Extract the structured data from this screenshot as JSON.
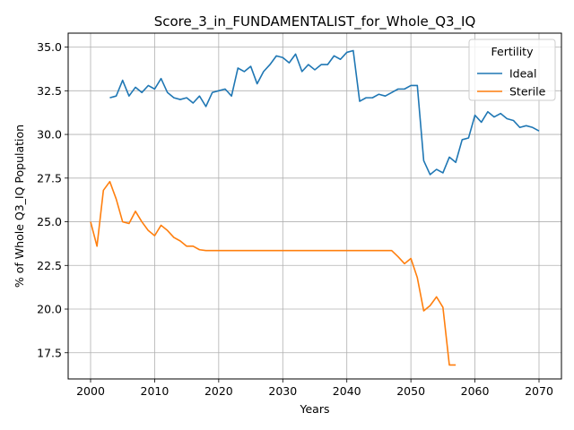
{
  "chart_data": {
    "type": "line",
    "title": "Score_3_in_FUNDAMENTALIST_for_Whole_Q3_IQ",
    "xlabel": "Years",
    "ylabel": "% of Whole Q3_IQ Population",
    "xlim": [
      1996.5,
      2073.5
    ],
    "ylim": [
      16.0,
      35.8
    ],
    "xticks": [
      2000,
      2010,
      2020,
      2030,
      2040,
      2050,
      2060,
      2070
    ],
    "yticks": [
      17.5,
      20.0,
      22.5,
      25.0,
      27.5,
      30.0,
      32.5,
      35.0
    ],
    "ytick_labels": [
      "17.5",
      "20.0",
      "22.5",
      "25.0",
      "27.5",
      "30.0",
      "32.5",
      "35.0"
    ],
    "grid": true,
    "legend": {
      "title": "Fertility",
      "placement": "top-right"
    },
    "series": [
      {
        "name": "Ideal",
        "color": "#1f77b4",
        "x": [
          2003,
          2004,
          2005,
          2006,
          2007,
          2008,
          2009,
          2010,
          2011,
          2012,
          2013,
          2014,
          2015,
          2016,
          2017,
          2018,
          2019,
          2020,
          2021,
          2022,
          2023,
          2024,
          2025,
          2026,
          2027,
          2028,
          2029,
          2030,
          2031,
          2032,
          2033,
          2034,
          2035,
          2036,
          2037,
          2038,
          2039,
          2040,
          2041,
          2042,
          2043,
          2044,
          2045,
          2046,
          2047,
          2048,
          2049,
          2050,
          2051,
          2052,
          2053,
          2054,
          2055,
          2056,
          2057,
          2058,
          2059,
          2060,
          2061,
          2062,
          2063,
          2064,
          2065,
          2066,
          2067,
          2068,
          2069,
          2070
        ],
        "y": [
          32.1,
          32.2,
          33.1,
          32.2,
          32.7,
          32.4,
          32.8,
          32.6,
          33.2,
          32.4,
          32.1,
          32.0,
          32.1,
          31.8,
          32.2,
          31.6,
          32.4,
          32.5,
          32.6,
          32.2,
          33.8,
          33.6,
          33.9,
          32.9,
          33.6,
          34.0,
          34.5,
          34.4,
          34.1,
          34.6,
          33.6,
          34.0,
          33.7,
          34.0,
          34.0,
          34.5,
          34.3,
          34.7,
          34.8,
          31.9,
          32.1,
          32.1,
          32.3,
          32.2,
          32.4,
          32.6,
          32.6,
          32.8,
          32.8,
          28.5,
          27.7,
          28.0,
          27.8,
          28.7,
          28.4,
          29.7,
          29.8,
          31.1,
          30.7,
          31.3,
          31.0,
          31.2,
          30.9,
          30.8,
          30.4,
          30.5,
          30.4,
          30.2
        ]
      },
      {
        "name": "Sterile",
        "color": "#ff7f0e",
        "x": [
          2000,
          2001,
          2002,
          2003,
          2004,
          2005,
          2006,
          2007,
          2008,
          2009,
          2010,
          2011,
          2012,
          2013,
          2014,
          2015,
          2016,
          2017,
          2018,
          2019,
          2020,
          2021,
          2022,
          2023,
          2024,
          2025,
          2026,
          2027,
          2028,
          2029,
          2030,
          2031,
          2032,
          2033,
          2034,
          2035,
          2036,
          2037,
          2038,
          2039,
          2040,
          2041,
          2042,
          2043,
          2044,
          2045,
          2046,
          2047,
          2048,
          2049,
          2050,
          2051,
          2052,
          2053,
          2054,
          2055,
          2056,
          2057
        ],
        "y": [
          25.0,
          23.6,
          26.8,
          27.3,
          26.3,
          25.0,
          24.9,
          25.6,
          25.0,
          24.5,
          24.2,
          24.8,
          24.5,
          24.1,
          23.9,
          23.6,
          23.6,
          23.4,
          23.35,
          23.35,
          23.35,
          23.35,
          23.35,
          23.35,
          23.35,
          23.35,
          23.35,
          23.35,
          23.35,
          23.35,
          23.35,
          23.35,
          23.35,
          23.35,
          23.35,
          23.35,
          23.35,
          23.35,
          23.35,
          23.35,
          23.35,
          23.35,
          23.35,
          23.35,
          23.35,
          23.35,
          23.35,
          23.35,
          23.0,
          22.6,
          22.9,
          21.8,
          19.9,
          20.2,
          20.7,
          20.1,
          16.8,
          16.8
        ]
      }
    ]
  }
}
